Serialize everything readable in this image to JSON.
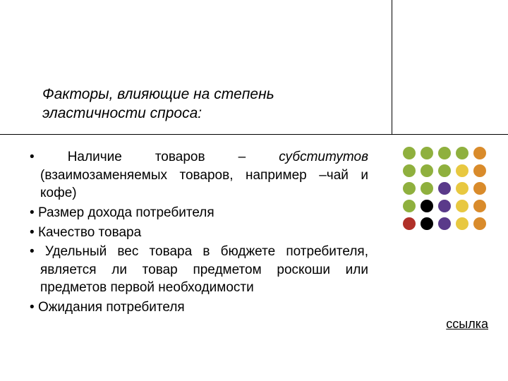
{
  "title": "Факторы, влияющие на степень эластичности спроса:",
  "bullets": [
    {
      "pre": "Наличие товаров – ",
      "em": "субститутов",
      "post": " (взаимозаменяемых товаров, например –чай и кофе)"
    },
    {
      "pre": "Размер дохода потребителя",
      "em": "",
      "post": ""
    },
    {
      "pre": "Качество товара",
      "em": "",
      "post": ""
    },
    {
      "pre": "Удельный вес товара в бюджете потребителя, является ли товар предметом роскоши или предметов первой необходимости",
      "em": "",
      "post": ""
    },
    {
      "pre": "Ожидания потребителя",
      "em": "",
      "post": ""
    }
  ],
  "link_text": "ссылка",
  "dot_colors": {
    "green": "#8fb03e",
    "orange": "#d98b2b",
    "yellow": "#e8c840",
    "purple": "#5a3a8a",
    "black": "#000000",
    "red": "#b03028"
  },
  "dot_grid": [
    [
      "green",
      "green",
      "green",
      "green",
      "orange"
    ],
    [
      "green",
      "green",
      "green",
      "yellow",
      "orange"
    ],
    [
      "green",
      "green",
      "purple",
      "yellow",
      "orange"
    ],
    [
      "green",
      "black",
      "purple",
      "yellow",
      "orange"
    ],
    [
      "red",
      "black",
      "purple",
      "yellow",
      "orange"
    ]
  ],
  "fontsize_title": 21,
  "fontsize_body": 19,
  "background_color": "#ffffff"
}
